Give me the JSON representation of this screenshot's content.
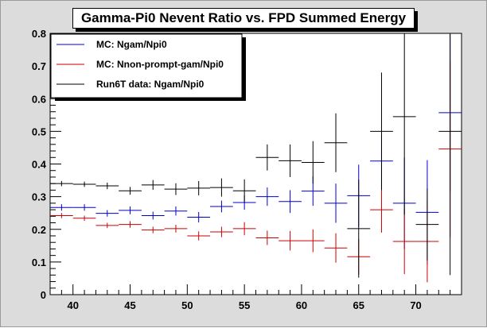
{
  "title": "Gamma-Pi0 Nevent Ratio vs. FPD Summed Energy",
  "chart_data": {
    "type": "scatter",
    "title": "Gamma-Pi0 Nevent Ratio vs. FPD Summed Energy",
    "xlabel": "",
    "ylabel": "",
    "xlim": [
      38,
      74
    ],
    "ylim": [
      0,
      0.8
    ],
    "x_ticks": [
      40,
      45,
      50,
      55,
      60,
      65,
      70
    ],
    "y_ticks": [
      0,
      0.1,
      0.2,
      0.3,
      0.4,
      0.5,
      0.6,
      0.7,
      0.8
    ],
    "grid": false,
    "legend_position": "top-left",
    "series": [
      {
        "name": "MC: Ngam/Npi0",
        "color": "#0000cc",
        "x": [
          39,
          41,
          43,
          45,
          47,
          49,
          51,
          53,
          55,
          57,
          59,
          61,
          63,
          65,
          67,
          69,
          71,
          73
        ],
        "y": [
          0.267,
          0.267,
          0.249,
          0.258,
          0.242,
          0.256,
          0.237,
          0.27,
          0.282,
          0.3,
          0.285,
          0.317,
          0.28,
          0.303,
          0.409,
          0.28,
          0.252,
          0.557
        ],
        "yerr": [
          0.01,
          0.01,
          0.01,
          0.012,
          0.012,
          0.014,
          0.016,
          0.018,
          0.022,
          0.028,
          0.035,
          0.045,
          0.06,
          0.095,
          0.08,
          0.14,
          0.16,
          0.24
        ]
      },
      {
        "name": "MC: Nnon-prompt-gam/Npi0",
        "color": "#cc0000",
        "x": [
          39,
          41,
          43,
          45,
          47,
          49,
          51,
          53,
          55,
          57,
          59,
          61,
          63,
          65,
          67,
          69,
          71,
          73
        ],
        "y": [
          0.242,
          0.234,
          0.212,
          0.215,
          0.198,
          0.202,
          0.18,
          0.192,
          0.202,
          0.174,
          0.165,
          0.165,
          0.143,
          0.116,
          0.26,
          0.163,
          0.163,
          0.446
        ],
        "yerr": [
          0.008,
          0.008,
          0.008,
          0.01,
          0.01,
          0.012,
          0.014,
          0.016,
          0.02,
          0.022,
          0.03,
          0.035,
          0.045,
          0.055,
          0.07,
          0.1,
          0.125,
          0.27
        ]
      },
      {
        "name": "Run6T data: Ngam/Npi0",
        "color": "#000000",
        "x": [
          39,
          41,
          43,
          45,
          47,
          49,
          51,
          53,
          55,
          57,
          59,
          61,
          63,
          65,
          67,
          69,
          71,
          73
        ],
        "y": [
          0.34,
          0.338,
          0.333,
          0.318,
          0.336,
          0.323,
          0.326,
          0.328,
          0.318,
          0.42,
          0.41,
          0.405,
          0.465,
          0.202,
          0.5,
          0.545,
          0.215,
          0.5
        ],
        "yerr": [
          0.008,
          0.008,
          0.01,
          0.012,
          0.015,
          0.018,
          0.022,
          0.028,
          0.035,
          0.04,
          0.05,
          0.065,
          0.09,
          0.15,
          0.18,
          0.3,
          0.11,
          0.44
        ]
      }
    ]
  }
}
